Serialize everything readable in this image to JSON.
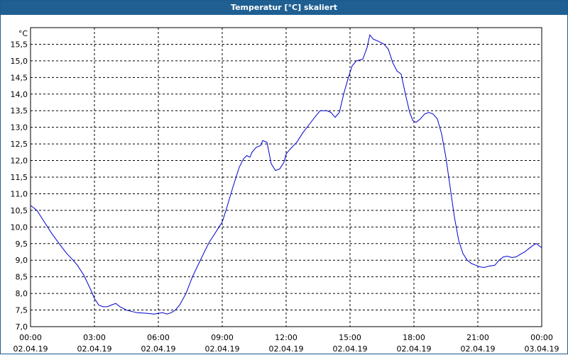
{
  "window": {
    "title": "Temperatur [°C] skaliert"
  },
  "colors": {
    "titlebar": "#1f5f92",
    "line": "#0000cc",
    "grid": "#000000"
  },
  "chart_data": {
    "type": "line",
    "title": "Temperatur [°C] skaliert",
    "ylabel": "°C",
    "xlabel": "",
    "ylim": [
      7.0,
      16.0
    ],
    "xlim_hours": [
      0,
      24
    ],
    "grid": true,
    "y_ticks": [
      "7,0",
      "7,5",
      "8,0",
      "8,5",
      "9,0",
      "9,5",
      "10,0",
      "10,5",
      "11,0",
      "11,5",
      "12,0",
      "12,5",
      "13,0",
      "13,5",
      "14,0",
      "14,5",
      "15,0",
      "15,5"
    ],
    "x_ticks": [
      {
        "time": "00:00",
        "date": "02.04.19"
      },
      {
        "time": "03:00",
        "date": "02.04.19"
      },
      {
        "time": "06:00",
        "date": "02.04.19"
      },
      {
        "time": "09:00",
        "date": "02.04.19"
      },
      {
        "time": "12:00",
        "date": "02.04.19"
      },
      {
        "time": "15:00",
        "date": "02.04.19"
      },
      {
        "time": "18:00",
        "date": "02.04.19"
      },
      {
        "time": "21:00",
        "date": "02.04.19"
      },
      {
        "time": "00:00",
        "date": "03.04.19"
      }
    ],
    "series": [
      {
        "values": [
          [
            0.0,
            10.65
          ],
          [
            0.3,
            10.5
          ],
          [
            0.6,
            10.2
          ],
          [
            1.0,
            9.8
          ],
          [
            1.4,
            9.45
          ],
          [
            1.7,
            9.2
          ],
          [
            2.0,
            9.0
          ],
          [
            2.2,
            8.85
          ],
          [
            2.5,
            8.55
          ],
          [
            2.8,
            8.15
          ],
          [
            3.0,
            7.85
          ],
          [
            3.2,
            7.65
          ],
          [
            3.4,
            7.6
          ],
          [
            3.6,
            7.6
          ],
          [
            3.8,
            7.65
          ],
          [
            4.0,
            7.7
          ],
          [
            4.2,
            7.6
          ],
          [
            4.5,
            7.5
          ],
          [
            5.0,
            7.42
          ],
          [
            5.5,
            7.4
          ],
          [
            5.8,
            7.38
          ],
          [
            6.0,
            7.4
          ],
          [
            6.2,
            7.42
          ],
          [
            6.4,
            7.38
          ],
          [
            6.6,
            7.42
          ],
          [
            6.8,
            7.5
          ],
          [
            7.0,
            7.65
          ],
          [
            7.3,
            8.0
          ],
          [
            7.6,
            8.5
          ],
          [
            7.9,
            8.9
          ],
          [
            8.2,
            9.3
          ],
          [
            8.4,
            9.55
          ],
          [
            8.6,
            9.75
          ],
          [
            8.8,
            9.95
          ],
          [
            9.0,
            10.15
          ],
          [
            9.2,
            10.55
          ],
          [
            9.5,
            11.2
          ],
          [
            9.8,
            11.8
          ],
          [
            10.0,
            12.05
          ],
          [
            10.15,
            12.15
          ],
          [
            10.3,
            12.1
          ],
          [
            10.4,
            12.25
          ],
          [
            10.6,
            12.4
          ],
          [
            10.8,
            12.45
          ],
          [
            10.9,
            12.6
          ],
          [
            11.1,
            12.55
          ],
          [
            11.3,
            11.9
          ],
          [
            11.5,
            11.7
          ],
          [
            11.7,
            11.75
          ],
          [
            11.9,
            11.95
          ],
          [
            12.0,
            12.2
          ],
          [
            12.2,
            12.35
          ],
          [
            12.5,
            12.55
          ],
          [
            12.8,
            12.85
          ],
          [
            13.1,
            13.1
          ],
          [
            13.4,
            13.35
          ],
          [
            13.6,
            13.5
          ],
          [
            13.9,
            13.5
          ],
          [
            14.1,
            13.45
          ],
          [
            14.3,
            13.3
          ],
          [
            14.5,
            13.45
          ],
          [
            14.7,
            14.0
          ],
          [
            14.9,
            14.45
          ],
          [
            15.1,
            14.85
          ],
          [
            15.3,
            15.0
          ],
          [
            15.6,
            15.05
          ],
          [
            15.8,
            15.4
          ],
          [
            15.93,
            15.78
          ],
          [
            16.1,
            15.65
          ],
          [
            16.3,
            15.6
          ],
          [
            16.6,
            15.5
          ],
          [
            16.8,
            15.35
          ],
          [
            17.0,
            14.95
          ],
          [
            17.2,
            14.7
          ],
          [
            17.4,
            14.6
          ],
          [
            17.6,
            14.0
          ],
          [
            17.8,
            13.45
          ],
          [
            17.95,
            13.2
          ],
          [
            18.1,
            13.15
          ],
          [
            18.3,
            13.25
          ],
          [
            18.5,
            13.4
          ],
          [
            18.7,
            13.45
          ],
          [
            18.9,
            13.4
          ],
          [
            19.1,
            13.25
          ],
          [
            19.3,
            12.8
          ],
          [
            19.5,
            12.1
          ],
          [
            19.7,
            11.2
          ],
          [
            19.9,
            10.3
          ],
          [
            20.1,
            9.6
          ],
          [
            20.3,
            9.2
          ],
          [
            20.5,
            9.0
          ],
          [
            20.7,
            8.9
          ],
          [
            20.9,
            8.85
          ],
          [
            21.1,
            8.8
          ],
          [
            21.3,
            8.78
          ],
          [
            21.5,
            8.82
          ],
          [
            21.8,
            8.85
          ],
          [
            22.0,
            9.0
          ],
          [
            22.2,
            9.1
          ],
          [
            22.4,
            9.12
          ],
          [
            22.6,
            9.08
          ],
          [
            22.8,
            9.1
          ],
          [
            23.0,
            9.18
          ],
          [
            23.2,
            9.25
          ],
          [
            23.4,
            9.35
          ],
          [
            23.6,
            9.45
          ],
          [
            23.75,
            9.5
          ],
          [
            23.9,
            9.42
          ],
          [
            24.0,
            9.38
          ]
        ]
      }
    ]
  }
}
